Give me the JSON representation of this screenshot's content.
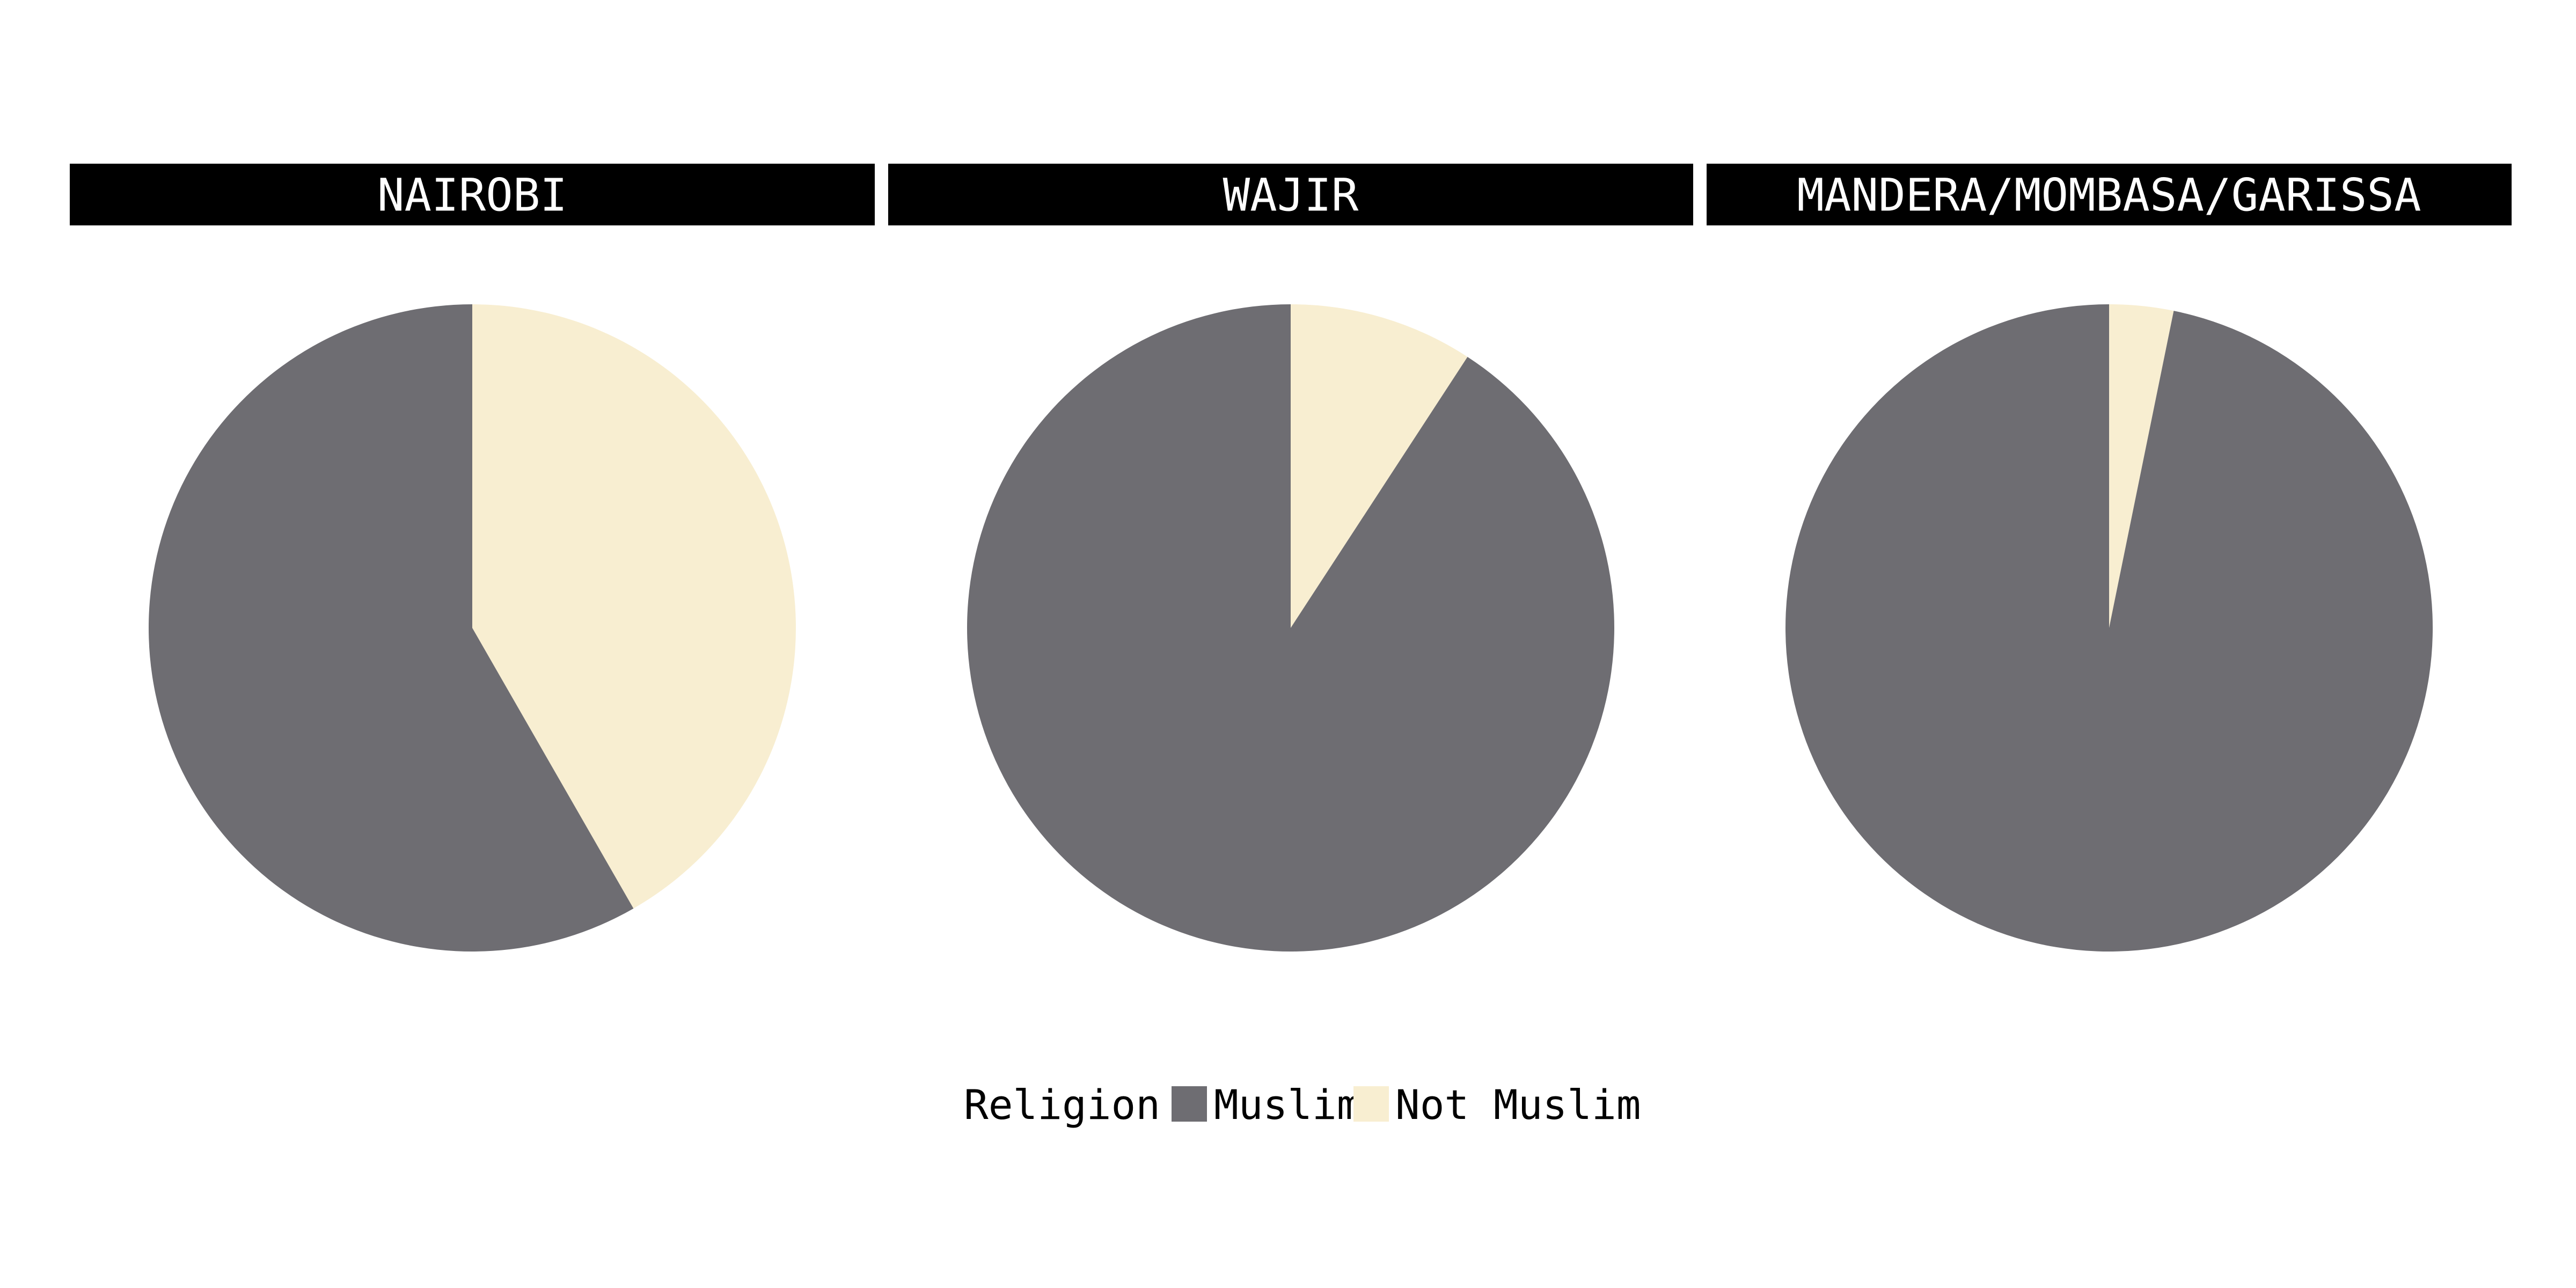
{
  "chart_data": {
    "type": "pie",
    "facets": [
      {
        "label": "NAIROBI",
        "values": {
          "Muslim": 58.3,
          "Not Muslim": 41.7
        }
      },
      {
        "label": "WAJIR",
        "values": {
          "Muslim": 90.8,
          "Not Muslim": 9.2
        }
      },
      {
        "label": "MANDERA/MOMBASA/GARISSA",
        "values": {
          "Muslim": 96.8,
          "Not Muslim": 3.2
        }
      }
    ],
    "categories": [
      "Not Muslim",
      "Muslim"
    ],
    "legend": {
      "title": "Religion",
      "position": "bottom",
      "items": [
        {
          "label": "Muslim",
          "color": "#6e6d72"
        },
        {
          "label": "Not Muslim",
          "color": "#f8eed1"
        }
      ]
    },
    "colors": {
      "strip_background": "#000000",
      "strip_text": "#ffffff",
      "Muslim": "#6e6d72",
      "Not Muslim": "#f8eed1"
    },
    "start_angle": "12 o'clock",
    "direction": "clockwise"
  }
}
